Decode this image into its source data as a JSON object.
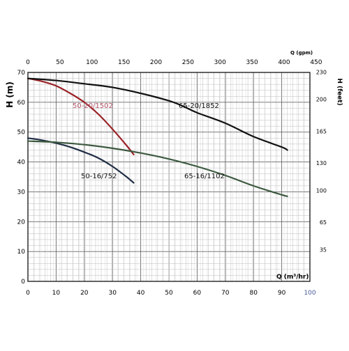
{
  "chart_data": {
    "type": "line",
    "left_axis": {
      "label": "H (m)",
      "ylim": [
        0,
        70
      ],
      "ticks": [
        0,
        10,
        20,
        30,
        40,
        50,
        60,
        70
      ]
    },
    "right_axis": {
      "label": "H (feet)",
      "ticks": [
        35,
        65,
        100,
        130,
        165,
        200,
        230
      ]
    },
    "bottom_axis": {
      "label": "Q (m³/hr)",
      "xlim": [
        0,
        100
      ],
      "ticks": [
        0,
        10,
        20,
        30,
        40,
        50,
        60,
        70,
        80,
        90,
        100
      ]
    },
    "top_axis": {
      "label": "Q (gpm)",
      "ticks": [
        0,
        50,
        100,
        150,
        200,
        250,
        300,
        350,
        400,
        450
      ]
    },
    "grid": true,
    "series": [
      {
        "name": "50-20/1502",
        "color": "#9b2226",
        "x": [
          0,
          5,
          10,
          15,
          20,
          25,
          30,
          35,
          37.5
        ],
        "y": [
          68,
          67,
          65.5,
          63,
          60,
          56,
          51,
          45.5,
          42.5
        ]
      },
      {
        "name": "65-20/1852",
        "color": "#111111",
        "x": [
          0,
          10,
          20,
          30,
          40,
          50,
          55,
          60,
          70,
          80,
          90,
          92
        ],
        "y": [
          68,
          67.3,
          66.2,
          65,
          63,
          60.5,
          58.7,
          56.5,
          53,
          48.5,
          45,
          44
        ]
      },
      {
        "name": "50-16/752",
        "color": "#1f2d44",
        "x": [
          0,
          5,
          10,
          15,
          20,
          25,
          30,
          35,
          37.5
        ],
        "y": [
          48,
          47.3,
          46.3,
          45,
          43.3,
          41.3,
          38.5,
          35,
          33
        ]
      },
      {
        "name": "65-16/1102",
        "color": "#3d5a40",
        "x": [
          0,
          10,
          20,
          30,
          40,
          50,
          60,
          70,
          80,
          90,
          92
        ],
        "y": [
          47,
          46.6,
          45.8,
          44.6,
          43,
          41,
          38.5,
          35.5,
          32,
          29,
          28.5
        ]
      }
    ]
  }
}
